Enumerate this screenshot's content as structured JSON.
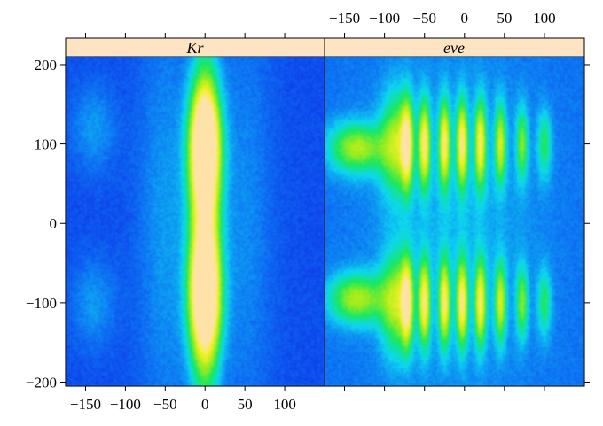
{
  "chart_data": {
    "type": "heatmap",
    "title": "",
    "xlabel": "",
    "ylabel": "",
    "xlim": [
      -175,
      150
    ],
    "ylim": [
      -205,
      210
    ],
    "x_ticks": [
      -150,
      -100,
      -50,
      0,
      50,
      100
    ],
    "y_ticks": [
      -200,
      -100,
      0,
      100,
      200
    ],
    "colorscale": [
      "#5a10c8",
      "#0820e6",
      "#0a74f4",
      "#10d8f0",
      "#14e860",
      "#9cec1e",
      "#f2f224",
      "#ffe2a8"
    ],
    "colorbar": "none",
    "grid": false,
    "panels": [
      {
        "name": "Kr",
        "background_level": 0.22,
        "blobs": [
          {
            "x": 0,
            "y": 95,
            "sx": 14,
            "sy": 55,
            "level": 0.82
          },
          {
            "x": 0,
            "y": -90,
            "sx": 14,
            "sy": 60,
            "level": 0.82
          },
          {
            "x": 0,
            "y": 0,
            "sx": 13,
            "sy": 160,
            "level": 0.45
          },
          {
            "x": 0,
            "y": 115,
            "sx": 7,
            "sy": 25,
            "level": 0.25
          },
          {
            "x": 0,
            "y": -80,
            "sx": 7,
            "sy": 25,
            "level": 0.25
          },
          {
            "x": -50,
            "y": 0,
            "sx": 25,
            "sy": 200,
            "level": 0.12
          },
          {
            "x": 50,
            "y": 0,
            "sx": 25,
            "sy": 200,
            "level": 0.1
          },
          {
            "x": -140,
            "y": 120,
            "sx": 20,
            "sy": 40,
            "level": 0.12
          },
          {
            "x": -140,
            "y": -100,
            "sx": 20,
            "sy": 40,
            "level": 0.12
          }
        ]
      },
      {
        "name": "eve",
        "background_level": 0.28,
        "blobs": [
          {
            "x": -135,
            "y": 95,
            "sx": 25,
            "sy": 22,
            "level": 0.45
          },
          {
            "x": -135,
            "y": -95,
            "sx": 25,
            "sy": 22,
            "level": 0.45
          },
          {
            "x": -85,
            "y": 100,
            "sx": 14,
            "sy": 45,
            "level": 0.42
          },
          {
            "x": -85,
            "y": -100,
            "sx": 14,
            "sy": 45,
            "level": 0.42
          },
          {
            "x": -72,
            "y": 100,
            "sx": 5,
            "sy": 38,
            "level": 0.55
          },
          {
            "x": -72,
            "y": -100,
            "sx": 5,
            "sy": 38,
            "level": 0.55
          },
          {
            "x": -50,
            "y": 100,
            "sx": 5,
            "sy": 38,
            "level": 0.6
          },
          {
            "x": -50,
            "y": -100,
            "sx": 5,
            "sy": 38,
            "level": 0.6
          },
          {
            "x": -25,
            "y": 100,
            "sx": 5,
            "sy": 38,
            "level": 0.6
          },
          {
            "x": -25,
            "y": -100,
            "sx": 5,
            "sy": 38,
            "level": 0.6
          },
          {
            "x": -3,
            "y": 100,
            "sx": 5,
            "sy": 38,
            "level": 0.62
          },
          {
            "x": -3,
            "y": -100,
            "sx": 5,
            "sy": 38,
            "level": 0.62
          },
          {
            "x": 20,
            "y": 100,
            "sx": 5,
            "sy": 38,
            "level": 0.58
          },
          {
            "x": 20,
            "y": -100,
            "sx": 5,
            "sy": 38,
            "level": 0.58
          },
          {
            "x": 45,
            "y": 100,
            "sx": 5,
            "sy": 35,
            "level": 0.48
          },
          {
            "x": 45,
            "y": -100,
            "sx": 5,
            "sy": 35,
            "level": 0.48
          },
          {
            "x": 72,
            "y": 100,
            "sx": 5,
            "sy": 32,
            "level": 0.38
          },
          {
            "x": 72,
            "y": -100,
            "sx": 5,
            "sy": 32,
            "level": 0.38
          },
          {
            "x": 100,
            "y": 100,
            "sx": 6,
            "sy": 30,
            "level": 0.28
          },
          {
            "x": 100,
            "y": -100,
            "sx": 6,
            "sy": 30,
            "level": 0.28
          },
          {
            "x": -10,
            "y": 0,
            "sx": 70,
            "sy": 150,
            "level": 0.1
          }
        ]
      }
    ]
  }
}
